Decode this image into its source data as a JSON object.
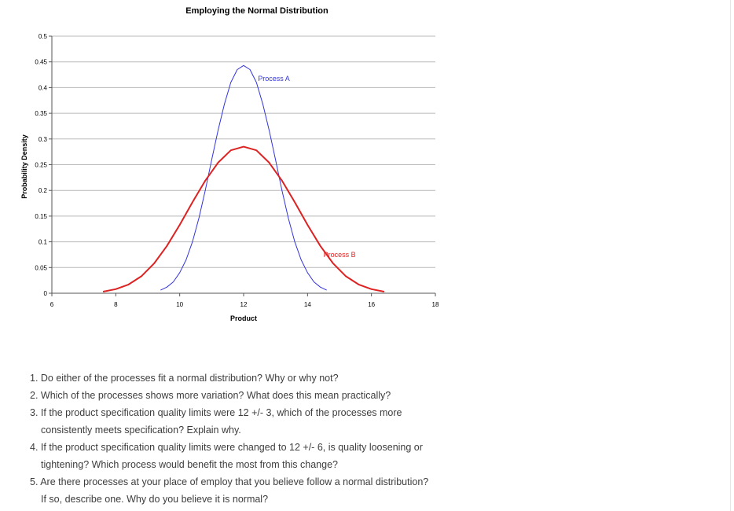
{
  "chart_data": {
    "type": "line",
    "title": "Employing the Normal Distribution",
    "xlabel": "Product",
    "ylabel": "Probability Density",
    "xlim": [
      6,
      18
    ],
    "ylim": [
      0,
      0.5
    ],
    "x_ticks": [
      "6",
      "8",
      "10",
      "12",
      "14",
      "16",
      "18"
    ],
    "y_ticks": [
      "0",
      "0.05",
      "0.1",
      "0.15",
      "0.2",
      "0.25",
      "0.3",
      "0.35",
      "0.4",
      "0.45",
      "0.5"
    ],
    "grid": true,
    "series": [
      {
        "name": "Process A",
        "color": "#3333dd",
        "x": [
          9.4,
          9.6,
          9.8,
          10.0,
          10.2,
          10.4,
          10.6,
          10.8,
          11.0,
          11.2,
          11.4,
          11.6,
          11.8,
          12.0,
          12.2,
          12.4,
          12.6,
          12.8,
          13.0,
          13.2,
          13.4,
          13.6,
          13.8,
          14.0,
          14.2,
          14.4,
          14.6
        ],
        "y": [
          0.006,
          0.012,
          0.022,
          0.04,
          0.065,
          0.1,
          0.146,
          0.2,
          0.259,
          0.317,
          0.368,
          0.41,
          0.435,
          0.443,
          0.435,
          0.41,
          0.368,
          0.317,
          0.259,
          0.2,
          0.146,
          0.1,
          0.065,
          0.04,
          0.022,
          0.012,
          0.006
        ]
      },
      {
        "name": "Process B",
        "color": "#dd2222",
        "x": [
          7.6,
          8.0,
          8.4,
          8.8,
          9.2,
          9.6,
          10.0,
          10.4,
          10.8,
          11.2,
          11.6,
          12.0,
          12.4,
          12.8,
          13.2,
          13.6,
          14.0,
          14.4,
          14.8,
          15.2,
          15.6,
          16.0,
          16.4
        ],
        "y": [
          0.003,
          0.008,
          0.017,
          0.033,
          0.058,
          0.092,
          0.133,
          0.177,
          0.219,
          0.254,
          0.278,
          0.285,
          0.278,
          0.254,
          0.219,
          0.177,
          0.133,
          0.092,
          0.058,
          0.033,
          0.017,
          0.008,
          0.003
        ]
      }
    ]
  },
  "questions": [
    {
      "line1": "1. Do either of the processes fit a normal distribution? Why or why not?",
      "line2": ""
    },
    {
      "line1": "2. Which of the processes shows more variation? What does this mean practically?",
      "line2": ""
    },
    {
      "line1": "3. If the product specification quality limits were 12 +/- 3, which of the processes more",
      "line2": "consistently meets specification? Explain why."
    },
    {
      "line1": "4. If the product specification quality limits were changed to 12 +/- 6, is quality loosening or",
      "line2": "tightening? Which process would benefit the most from this change?"
    },
    {
      "line1": "5. Are there processes at your place of employ that you believe follow a normal distribution?",
      "line2": "If so, describe one.  Why do you believe it is normal?"
    }
  ]
}
